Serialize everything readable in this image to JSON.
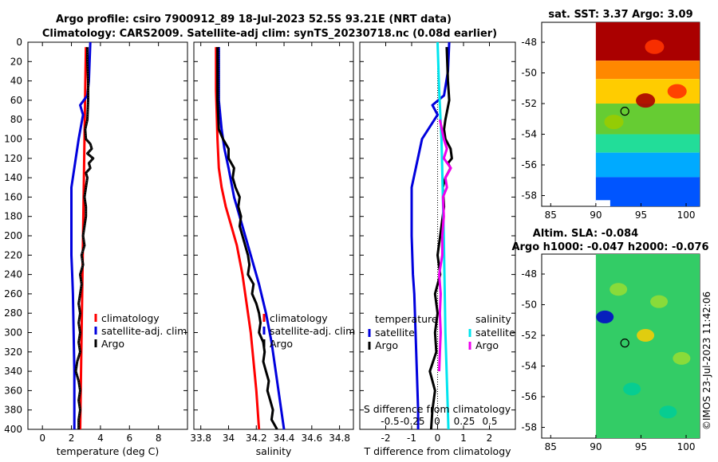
{
  "header": {
    "title_line1": "Argo profile: csiro 7900912_89 18-Jul-2023 52.5S 93.21E (NRT data)",
    "title_line2": "Climatology: CARS2009. Satellite-adj clim: synTS_20230718.nc (0.08d earlier)"
  },
  "credit": "©IMOS 23-Jul-2023 11:42:06",
  "colors": {
    "climatology": "#ff0000",
    "satellite": "#0000dd",
    "argo": "#000000",
    "cyan": "#00e5ee",
    "magenta": "#ee00ee"
  },
  "depth_axis": {
    "range": [
      0,
      400
    ],
    "ticks": [
      "0",
      "20",
      "40",
      "60",
      "80",
      "100",
      "120",
      "140",
      "160",
      "180",
      "200",
      "220",
      "240",
      "260",
      "280",
      "300",
      "320",
      "340",
      "360",
      "380",
      "400"
    ]
  },
  "chart_data": [
    {
      "type": "line",
      "name": "temperature-profile",
      "xlabel": "temperature (deg C)",
      "xlim": [
        -1,
        10
      ],
      "xticks": [
        "0",
        "2",
        "4",
        "6",
        "8"
      ],
      "xtick_values": [
        0,
        2,
        4,
        6,
        8
      ],
      "legend": [
        "climatology",
        "satellite-adj. clim",
        "Argo"
      ],
      "series": [
        {
          "name": "climatology",
          "color": "#ff0000",
          "depth": [
            5,
            50,
            100,
            150,
            200,
            250,
            300,
            350,
            400
          ],
          "values": [
            3.0,
            2.95,
            2.9,
            2.85,
            2.8,
            2.75,
            2.7,
            2.65,
            2.6
          ]
        },
        {
          "name": "satellite-adj. clim",
          "color": "#0000dd",
          "depth": [
            0,
            20,
            40,
            55,
            65,
            75,
            100,
            150,
            180,
            200,
            220,
            240,
            260,
            300,
            340,
            380,
            400
          ],
          "values": [
            3.3,
            3.25,
            3.2,
            3.1,
            2.6,
            2.8,
            2.5,
            2.0,
            2.0,
            2.0,
            2.0,
            2.05,
            2.1,
            2.15,
            2.2,
            2.2,
            2.2
          ]
        },
        {
          "name": "Argo",
          "color": "#000000",
          "depth": [
            5,
            20,
            40,
            60,
            80,
            90,
            100,
            105,
            110,
            115,
            120,
            125,
            130,
            135,
            140,
            150,
            160,
            170,
            180,
            190,
            200,
            210,
            220,
            230,
            240,
            250,
            260,
            270,
            280,
            290,
            300,
            310,
            320,
            330,
            340,
            350,
            360,
            370,
            380,
            390,
            400
          ],
          "values": [
            3.1,
            3.1,
            3.15,
            3.15,
            3.1,
            2.95,
            3.0,
            3.3,
            3.4,
            3.1,
            3.5,
            3.2,
            3.3,
            3.0,
            3.1,
            3.0,
            2.9,
            3.0,
            3.0,
            2.9,
            2.8,
            2.9,
            2.7,
            2.8,
            2.6,
            2.7,
            2.6,
            2.5,
            2.6,
            2.5,
            2.6,
            2.5,
            2.6,
            2.4,
            2.3,
            2.5,
            2.6,
            2.5,
            2.6,
            2.5,
            2.5
          ]
        }
      ]
    },
    {
      "type": "line",
      "name": "salinity-profile",
      "xlabel": "salinity",
      "xlim": [
        33.75,
        34.9
      ],
      "xticks": [
        "33.8",
        "34",
        "34.2",
        "34.4",
        "34.6",
        "34.8"
      ],
      "xtick_values": [
        33.8,
        34.0,
        34.2,
        34.4,
        34.6,
        34.8
      ],
      "legend": [
        "climatology",
        "satellite-adj. clim",
        "Argo"
      ],
      "series": [
        {
          "name": "climatology",
          "color": "#ff0000",
          "depth": [
            5,
            50,
            100,
            130,
            150,
            170,
            190,
            210,
            240,
            270,
            300,
            330,
            360,
            400
          ],
          "values": [
            33.91,
            33.91,
            33.92,
            33.93,
            33.95,
            33.98,
            34.02,
            34.06,
            34.1,
            34.13,
            34.16,
            34.18,
            34.2,
            34.22
          ]
        },
        {
          "name": "satellite-adj. clim",
          "color": "#0000dd",
          "depth": [
            5,
            30,
            60,
            90,
            110,
            130,
            160,
            190,
            220,
            250,
            280,
            310,
            340,
            370,
            400
          ],
          "values": [
            33.93,
            33.93,
            33.93,
            33.95,
            33.97,
            34.0,
            34.04,
            34.1,
            34.16,
            34.22,
            34.27,
            34.31,
            34.34,
            34.37,
            34.4
          ]
        },
        {
          "name": "Argo",
          "color": "#000000",
          "depth": [
            5,
            60,
            90,
            100,
            110,
            120,
            130,
            140,
            150,
            160,
            170,
            180,
            190,
            200,
            210,
            220,
            230,
            240,
            250,
            260,
            270,
            280,
            290,
            300,
            310,
            320,
            330,
            340,
            350,
            360,
            370,
            380,
            390,
            400
          ],
          "values": [
            33.92,
            33.92,
            33.93,
            33.96,
            34.0,
            34.0,
            34.04,
            34.03,
            34.05,
            34.08,
            34.07,
            34.09,
            34.08,
            34.1,
            34.12,
            34.14,
            34.15,
            34.14,
            34.18,
            34.17,
            34.2,
            34.22,
            34.23,
            34.22,
            34.25,
            34.26,
            34.25,
            34.27,
            34.29,
            34.28,
            34.3,
            34.32,
            34.31,
            34.35
          ]
        }
      ]
    },
    {
      "type": "line",
      "name": "difference-from-climatology",
      "xlabel": "T difference from climatology",
      "xlim": [
        -3,
        3
      ],
      "xticks": [
        "-2",
        "-1",
        "0",
        "1",
        "2"
      ],
      "xtick_values": [
        -2,
        -1,
        0,
        1,
        2
      ],
      "top_xlabel": "S difference from climatology",
      "top_xticks": [
        "-0.5",
        "-0.25",
        "0",
        "0.25",
        "0.5"
      ],
      "top_xtick_values": [
        -0.5,
        -0.25,
        0,
        0.25,
        0.5
      ],
      "top_xlim": [
        -1,
        1
      ],
      "legend_temperature": {
        "title": "temperature",
        "entries": [
          "satellite",
          "Argo"
        ]
      },
      "legend_salinity": {
        "title": "salinity",
        "entries": [
          "satellite",
          "Argo"
        ]
      },
      "series": [
        {
          "name": "temperature satellite",
          "axis": "T",
          "color": "#0000dd",
          "depth": [
            0,
            30,
            55,
            65,
            75,
            100,
            150,
            180,
            200,
            240,
            260,
            300,
            340,
            380,
            400
          ],
          "values": [
            0.45,
            0.4,
            0.25,
            -0.2,
            0.0,
            -0.6,
            -1.0,
            -1.0,
            -1.0,
            -0.95,
            -0.9,
            -0.85,
            -0.8,
            -0.75,
            -0.75
          ]
        },
        {
          "name": "temperature Argo",
          "axis": "T",
          "color": "#000000",
          "depth": [
            5,
            40,
            60,
            80,
            90,
            100,
            110,
            120,
            125,
            130,
            140,
            150,
            170,
            200,
            220,
            240,
            260,
            280,
            300,
            320,
            340,
            360,
            380,
            400
          ],
          "values": [
            0.35,
            0.4,
            0.45,
            0.3,
            0.25,
            0.3,
            0.5,
            0.55,
            0.4,
            0.5,
            0.3,
            0.2,
            0.25,
            0.1,
            0.0,
            0.1,
            -0.1,
            0.0,
            -0.1,
            -0.05,
            -0.3,
            -0.1,
            -0.2,
            -0.25
          ]
        },
        {
          "name": "salinity satellite",
          "axis": "S",
          "color": "#00e5ee",
          "depth": [
            0,
            50,
            100,
            200,
            300,
            400
          ],
          "values": [
            0.0,
            0.02,
            0.05,
            0.08,
            0.1,
            0.14
          ]
        },
        {
          "name": "salinity Argo",
          "axis": "S",
          "color": "#ee00ee",
          "depth": [
            80,
            100,
            110,
            120,
            130,
            140,
            150,
            160,
            180,
            200,
            220,
            240,
            260,
            280,
            300,
            320,
            340
          ],
          "values": [
            0.03,
            0.08,
            0.12,
            0.08,
            0.17,
            0.1,
            0.12,
            0.07,
            0.08,
            0.06,
            0.06,
            0.02,
            0.04,
            0.03,
            0.04,
            0.03,
            0.02
          ]
        }
      ]
    },
    {
      "type": "heatmap",
      "name": "sst-map",
      "title": "sat. SST: 3.37 Argo: 3.09",
      "xlim": [
        84,
        101.5
      ],
      "ylim": [
        -58.7,
        -46.7
      ],
      "xticks": [
        "85",
        "90",
        "95",
        "100"
      ],
      "xtick_values": [
        85,
        90,
        95,
        100
      ],
      "yticks": [
        "-48",
        "-50",
        "-52",
        "-54",
        "-56",
        "-58"
      ],
      "ytick_values": [
        -48,
        -50,
        -52,
        -54,
        -56,
        -58
      ],
      "data_lon_range": [
        90,
        101.5
      ],
      "argo_position": {
        "lon": 93.21,
        "lat": -52.5
      },
      "colorscale": [
        "#0000aa",
        "#0055ff",
        "#00aaff",
        "#22dd99",
        "#66cc33",
        "#99cc00",
        "#ffcc00",
        "#ff8800",
        "#ff3300",
        "#aa0000"
      ],
      "color_bands": [
        {
          "lat_top": -46.7,
          "lat_bottom": -49.2,
          "level": 9
        },
        {
          "lat_top": -49.2,
          "lat_bottom": -50.4,
          "level": 7
        },
        {
          "lat_top": -50.4,
          "lat_bottom": -52.0,
          "level": 6
        },
        {
          "lat_top": -52.0,
          "lat_bottom": -54.0,
          "level": 4
        },
        {
          "lat_top": -54.0,
          "lat_bottom": -55.2,
          "level": 3
        },
        {
          "lat_top": -55.2,
          "lat_bottom": -56.8,
          "level": 2
        },
        {
          "lat_top": -56.8,
          "lat_bottom": -58.7,
          "level": 1
        }
      ],
      "features": [
        {
          "lon": 96.5,
          "lat": -48.3,
          "level": 8
        },
        {
          "lon": 95.5,
          "lat": -51.8,
          "level": 9
        },
        {
          "lon": 99.0,
          "lat": -51.2,
          "level": 8
        },
        {
          "lon": 92.0,
          "lat": -53.2,
          "level": 5
        }
      ]
    },
    {
      "type": "heatmap",
      "name": "sla-map",
      "title": "Altim. SLA: -0.084",
      "subtitle": "Argo h1000: -0.047 h2000: -0.076",
      "xlim": [
        84,
        101.5
      ],
      "ylim": [
        -58.7,
        -46.7
      ],
      "xticks": [
        "85",
        "90",
        "95",
        "100"
      ],
      "xtick_values": [
        85,
        90,
        95,
        100
      ],
      "yticks": [
        "-48",
        "-50",
        "-52",
        "-54",
        "-56",
        "-58"
      ],
      "ytick_values": [
        -48,
        -50,
        -52,
        -54,
        -56,
        -58
      ],
      "data_lon_range": [
        90,
        101.5
      ],
      "argo_position": {
        "lon": 93.21,
        "lat": -52.5
      },
      "base_color": "#33cc66",
      "features": [
        {
          "lon": 91.0,
          "lat": -50.8,
          "color": "#0000cc"
        },
        {
          "lon": 95.5,
          "lat": -52.0,
          "color": "#ffcc00"
        },
        {
          "lon": 92.5,
          "lat": -49.0,
          "color": "#99dd33"
        },
        {
          "lon": 97.0,
          "lat": -49.8,
          "color": "#99dd33"
        },
        {
          "lon": 99.5,
          "lat": -53.5,
          "color": "#99dd33"
        },
        {
          "lon": 94.0,
          "lat": -55.5,
          "color": "#00cc99"
        },
        {
          "lon": 98.0,
          "lat": -57.0,
          "color": "#00cc99"
        }
      ]
    }
  ]
}
